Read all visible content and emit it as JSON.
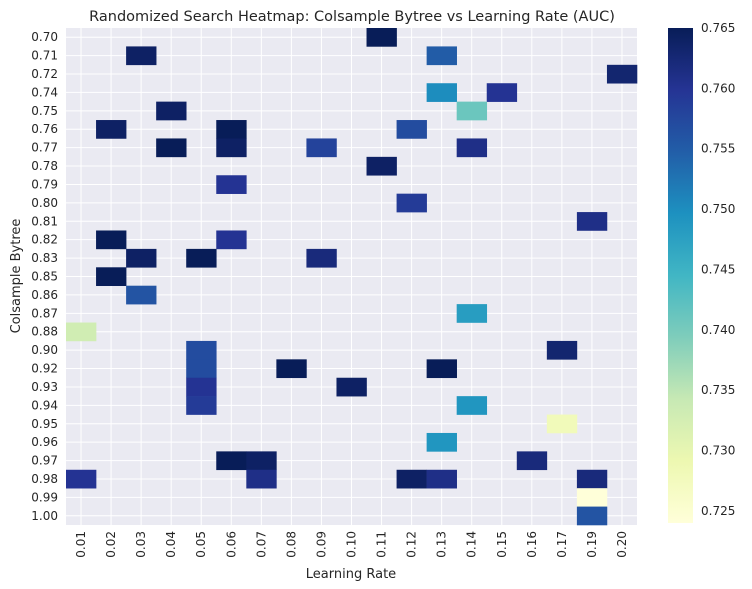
{
  "chart_data": {
    "type": "heatmap",
    "title": "Randomized Search Heatmap: Colsample Bytree vs Learning Rate (AUC)",
    "xlabel": "Learning Rate",
    "ylabel": "Colsample Bytree",
    "x_categories": [
      "0.01",
      "0.02",
      "0.03",
      "0.04",
      "0.05",
      "0.06",
      "0.07",
      "0.08",
      "0.09",
      "0.10",
      "0.11",
      "0.12",
      "0.13",
      "0.14",
      "0.15",
      "0.16",
      "0.17",
      "0.19",
      "0.20"
    ],
    "y_categories": [
      "0.70",
      "0.71",
      "0.72",
      "0.74",
      "0.75",
      "0.76",
      "0.77",
      "0.78",
      "0.79",
      "0.80",
      "0.81",
      "0.82",
      "0.83",
      "0.85",
      "0.86",
      "0.87",
      "0.88",
      "0.90",
      "0.92",
      "0.93",
      "0.94",
      "0.95",
      "0.96",
      "0.97",
      "0.98",
      "0.99",
      "1.00"
    ],
    "cells": [
      {
        "x": "0.11",
        "y": "0.70",
        "value": 0.765
      },
      {
        "x": "0.03",
        "y": "0.71",
        "value": 0.764
      },
      {
        "x": "0.13",
        "y": "0.71",
        "value": 0.755
      },
      {
        "x": "0.20",
        "y": "0.72",
        "value": 0.763
      },
      {
        "x": "0.13",
        "y": "0.74",
        "value": 0.75
      },
      {
        "x": "0.15",
        "y": "0.74",
        "value": 0.76
      },
      {
        "x": "0.04",
        "y": "0.75",
        "value": 0.764
      },
      {
        "x": "0.14",
        "y": "0.75",
        "value": 0.741
      },
      {
        "x": "0.02",
        "y": "0.76",
        "value": 0.764
      },
      {
        "x": "0.06",
        "y": "0.76",
        "value": 0.765
      },
      {
        "x": "0.12",
        "y": "0.76",
        "value": 0.757
      },
      {
        "x": "0.04",
        "y": "0.77",
        "value": 0.765
      },
      {
        "x": "0.06",
        "y": "0.77",
        "value": 0.764
      },
      {
        "x": "0.09",
        "y": "0.77",
        "value": 0.758
      },
      {
        "x": "0.14",
        "y": "0.77",
        "value": 0.761
      },
      {
        "x": "0.11",
        "y": "0.78",
        "value": 0.764
      },
      {
        "x": "0.06",
        "y": "0.79",
        "value": 0.76
      },
      {
        "x": "0.12",
        "y": "0.80",
        "value": 0.759
      },
      {
        "x": "0.19",
        "y": "0.81",
        "value": 0.761
      },
      {
        "x": "0.02",
        "y": "0.82",
        "value": 0.765
      },
      {
        "x": "0.06",
        "y": "0.82",
        "value": 0.76
      },
      {
        "x": "0.03",
        "y": "0.83",
        "value": 0.764
      },
      {
        "x": "0.05",
        "y": "0.83",
        "value": 0.765
      },
      {
        "x": "0.09",
        "y": "0.83",
        "value": 0.762
      },
      {
        "x": "0.02",
        "y": "0.85",
        "value": 0.765
      },
      {
        "x": "0.03",
        "y": "0.86",
        "value": 0.756
      },
      {
        "x": "0.14",
        "y": "0.87",
        "value": 0.748
      },
      {
        "x": "0.01",
        "y": "0.88",
        "value": 0.733
      },
      {
        "x": "0.05",
        "y": "0.90",
        "value": 0.757
      },
      {
        "x": "0.17",
        "y": "0.90",
        "value": 0.763
      },
      {
        "x": "0.05",
        "y": "0.92",
        "value": 0.757
      },
      {
        "x": "0.08",
        "y": "0.92",
        "value": 0.765
      },
      {
        "x": "0.13",
        "y": "0.92",
        "value": 0.765
      },
      {
        "x": "0.05",
        "y": "0.93",
        "value": 0.76
      },
      {
        "x": "0.10",
        "y": "0.93",
        "value": 0.764
      },
      {
        "x": "0.05",
        "y": "0.94",
        "value": 0.759
      },
      {
        "x": "0.14",
        "y": "0.94",
        "value": 0.749
      },
      {
        "x": "0.17",
        "y": "0.95",
        "value": 0.728
      },
      {
        "x": "0.13",
        "y": "0.96",
        "value": 0.749
      },
      {
        "x": "0.06",
        "y": "0.97",
        "value": 0.765
      },
      {
        "x": "0.07",
        "y": "0.97",
        "value": 0.764
      },
      {
        "x": "0.16",
        "y": "0.97",
        "value": 0.762
      },
      {
        "x": "0.01",
        "y": "0.98",
        "value": 0.76
      },
      {
        "x": "0.07",
        "y": "0.98",
        "value": 0.761
      },
      {
        "x": "0.12",
        "y": "0.98",
        "value": 0.764
      },
      {
        "x": "0.13",
        "y": "0.98",
        "value": 0.761
      },
      {
        "x": "0.19",
        "y": "0.98",
        "value": 0.762
      },
      {
        "x": "0.19",
        "y": "0.99",
        "value": 0.724
      },
      {
        "x": "0.19",
        "y": "1.00",
        "value": 0.756
      }
    ],
    "colormap": "YlGnBu",
    "vmin": 0.724,
    "vmax": 0.765,
    "colorbar_ticks": [
      0.725,
      0.73,
      0.735,
      0.74,
      0.745,
      0.75,
      0.755,
      0.76,
      0.765
    ],
    "colorbar_tick_labels": [
      "0.725",
      "0.730",
      "0.735",
      "0.740",
      "0.745",
      "0.750",
      "0.755",
      "0.760",
      "0.765"
    ],
    "background_color": "#eaeaf2",
    "grid": true,
    "colorbar_location": "right"
  }
}
